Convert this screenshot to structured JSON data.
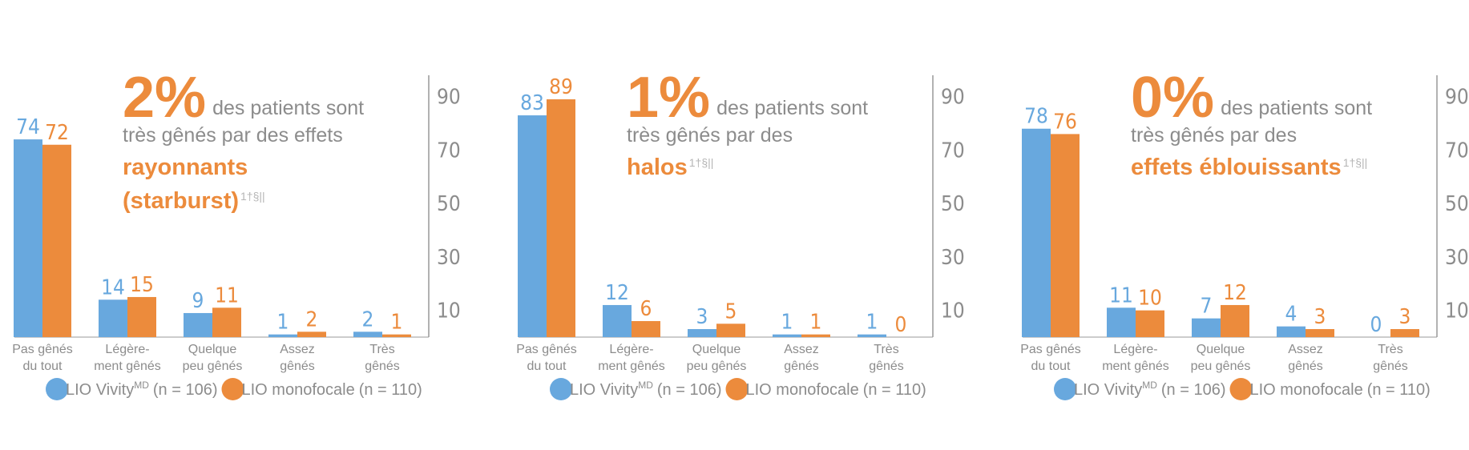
{
  "chart_data": [
    {
      "type": "bar",
      "headline": {
        "stat": "2%",
        "text_lines": [
          "des patients sont",
          "très gênés par des effets"
        ],
        "highlight_lines": [
          "rayonnants",
          "(starburst)"
        ],
        "note": "1†§||"
      },
      "categories": [
        [
          "Pas gênés",
          "du tout"
        ],
        [
          "Légère-",
          "ment gênés"
        ],
        [
          "Quelque",
          "peu gênés"
        ],
        [
          "Assez",
          "gênés"
        ],
        [
          "Très",
          "gênés"
        ]
      ],
      "series": [
        {
          "name": "LIO Vivity",
          "name_superscript": "MD",
          "sample": "(n = 106)",
          "color": "#68a8de",
          "values": [
            74,
            14,
            9,
            1,
            2
          ]
        },
        {
          "name": "LIO monofocale",
          "sample": "(n = 110)",
          "color": "#ec8b3c",
          "values": [
            72,
            15,
            11,
            2,
            1
          ]
        }
      ],
      "ylim": [
        0,
        98
      ],
      "yticks": [
        10,
        30,
        50,
        70,
        90
      ]
    },
    {
      "type": "bar",
      "headline": {
        "stat": "1%",
        "text_lines": [
          "des patients sont",
          "très gênés par des"
        ],
        "highlight_lines": [
          "halos"
        ],
        "note": "1†§||"
      },
      "categories": [
        [
          "Pas gênés",
          "du tout"
        ],
        [
          "Légère-",
          "ment gênés"
        ],
        [
          "Quelque",
          "peu gênés"
        ],
        [
          "Assez",
          "gênés"
        ],
        [
          "Très",
          "gênés"
        ]
      ],
      "series": [
        {
          "name": "LIO Vivity",
          "name_superscript": "MD",
          "sample": "(n = 106)",
          "color": "#68a8de",
          "values": [
            83,
            12,
            3,
            1,
            1
          ]
        },
        {
          "name": "LIO monofocale",
          "sample": "(n = 110)",
          "color": "#ec8b3c",
          "values": [
            89,
            6,
            5,
            1,
            0
          ]
        }
      ],
      "ylim": [
        0,
        98
      ],
      "yticks": [
        10,
        30,
        50,
        70,
        90
      ]
    },
    {
      "type": "bar",
      "headline": {
        "stat": "0%",
        "text_lines": [
          "des patients sont",
          "très gênés par des"
        ],
        "highlight_lines": [
          "effets éblouissants"
        ],
        "note": "1†§||"
      },
      "categories": [
        [
          "Pas gênés",
          "du tout"
        ],
        [
          "Légère-",
          "ment gênés"
        ],
        [
          "Quelque",
          "peu gênés"
        ],
        [
          "Assez",
          "gênés"
        ],
        [
          "Très",
          "gênés"
        ]
      ],
      "series": [
        {
          "name": "LIO Vivity",
          "name_superscript": "MD",
          "sample": "(n = 106)",
          "color": "#68a8de",
          "values": [
            78,
            11,
            7,
            4,
            0
          ]
        },
        {
          "name": "LIO monofocale",
          "sample": "(n = 110)",
          "color": "#ec8b3c",
          "values": [
            76,
            10,
            12,
            3,
            3
          ]
        }
      ],
      "ylim": [
        0,
        98
      ],
      "yticks": [
        10,
        30,
        50,
        70,
        90
      ]
    }
  ]
}
